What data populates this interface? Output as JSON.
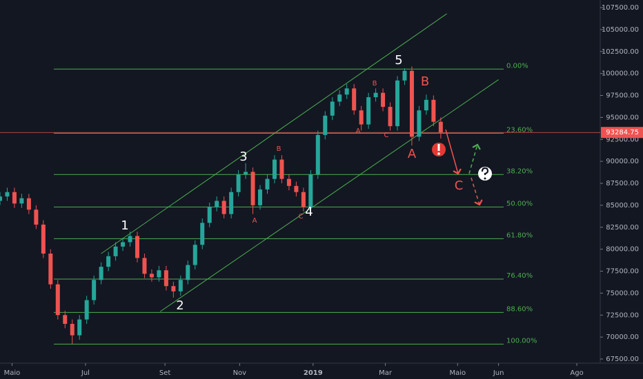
{
  "chart_data": {
    "type": "candlestick",
    "x": [
      0,
      6,
      12,
      18,
      24,
      30,
      36,
      42,
      48,
      54,
      60,
      66,
      72,
      78,
      84,
      90,
      96,
      102,
      108,
      114,
      120,
      126,
      132,
      138,
      144,
      150,
      156,
      162,
      168,
      174,
      180,
      186,
      192,
      198,
      204,
      210,
      216,
      222,
      228,
      234,
      240,
      246,
      252,
      258,
      264,
      270,
      276,
      282,
      288,
      294,
      300,
      306,
      312,
      318,
      324,
      330,
      336,
      342,
      348,
      354,
      360,
      366
    ],
    "open": [
      85500,
      86000,
      86500,
      85200,
      85800,
      84500,
      82800,
      79500,
      76000,
      72500,
      71500,
      70200,
      72000,
      74200,
      76500,
      78000,
      79200,
      80300,
      80800,
      81500,
      79000,
      77200,
      76800,
      77600,
      75800,
      75200,
      76500,
      78200,
      80500,
      83000,
      84800,
      85500,
      84000,
      86500,
      88500,
      88800,
      85000,
      86800,
      88000,
      90200,
      88000,
      87200,
      86500,
      84800,
      88500,
      93000,
      95200,
      96800,
      97600,
      98300,
      95800,
      94200,
      97300,
      97800,
      96200,
      94000,
      99200,
      100300,
      92800,
      95800,
      97000,
      94500
    ],
    "high": [
      86500,
      87000,
      87000,
      86300,
      86300,
      85000,
      83300,
      80000,
      76500,
      73000,
      72000,
      72500,
      74700,
      77000,
      78500,
      79700,
      80800,
      81300,
      82000,
      82000,
      79500,
      77700,
      78100,
      78100,
      76300,
      77000,
      78700,
      81000,
      83500,
      85300,
      86000,
      86000,
      87000,
      89000,
      89800,
      89300,
      87300,
      88500,
      90700,
      90700,
      88500,
      87700,
      87000,
      89000,
      93500,
      95700,
      97300,
      98100,
      98800,
      98800,
      96300,
      97800,
      98300,
      98300,
      96700,
      99700,
      100600,
      100800,
      96300,
      97600,
      97500,
      95000
    ],
    "low": [
      85000,
      85500,
      84700,
      84700,
      84000,
      82300,
      79000,
      75500,
      72000,
      71000,
      69200,
      69700,
      71500,
      73700,
      76000,
      77500,
      78700,
      79800,
      80300,
      78500,
      76700,
      76300,
      76300,
      75300,
      74500,
      74700,
      76000,
      77700,
      80000,
      82500,
      84300,
      83500,
      83500,
      86000,
      88000,
      84000,
      84500,
      86300,
      87500,
      87500,
      86700,
      86000,
      84300,
      84300,
      88000,
      92500,
      94700,
      96300,
      97100,
      95300,
      93500,
      93700,
      96800,
      95700,
      93500,
      93500,
      98700,
      91800,
      92300,
      95300,
      94000,
      92600
    ],
    "close": [
      86000,
      86500,
      85200,
      85800,
      84500,
      82800,
      79500,
      76000,
      72500,
      71500,
      70200,
      72000,
      74200,
      76500,
      78000,
      79200,
      80300,
      80800,
      81500,
      79000,
      77200,
      76800,
      77600,
      75800,
      75200,
      76500,
      78200,
      80500,
      83000,
      84800,
      85500,
      84000,
      86500,
      88500,
      88800,
      85000,
      86800,
      88000,
      90200,
      88000,
      87200,
      86500,
      84800,
      88500,
      93000,
      95200,
      96800,
      97600,
      98300,
      95800,
      94200,
      97300,
      97800,
      96200,
      94000,
      99200,
      100300,
      92800,
      95800,
      97000,
      94500,
      93284.75
    ],
    "up_color": "#26a69a",
    "down_color": "#ef5350",
    "last_price": 93284.75,
    "xlim": [
      0,
      499
    ],
    "xticks": [
      {
        "value": 10,
        "label": "Maio"
      },
      {
        "value": 71,
        "label": "Jul"
      },
      {
        "value": 137,
        "label": "Set"
      },
      {
        "value": 199,
        "label": "Nov"
      },
      {
        "value": 260,
        "label": "2019"
      },
      {
        "value": 320,
        "label": "Mar"
      },
      {
        "value": 380,
        "label": "Maio"
      },
      {
        "value": 414,
        "label": "Jun"
      },
      {
        "value": 479,
        "label": "Ago"
      }
    ],
    "ylim": [
      67500,
      107500
    ],
    "yticks": [
      {
        "value": 107500,
        "label": "107500.00"
      },
      {
        "value": 105000,
        "label": "105000.00"
      },
      {
        "value": 102500,
        "label": "102500.00"
      },
      {
        "value": 100000,
        "label": "100000.00"
      },
      {
        "value": 97500,
        "label": "97500.00"
      },
      {
        "value": 95000,
        "label": "95000.00"
      },
      {
        "value": 92500,
        "label": "92500.00"
      },
      {
        "value": 90000,
        "label": "90000.00"
      },
      {
        "value": 87500,
        "label": "87500.00"
      },
      {
        "value": 85000,
        "label": "85000.00"
      },
      {
        "value": 82500,
        "label": "82500.00"
      },
      {
        "value": 80000,
        "label": "80000.00"
      },
      {
        "value": 77500,
        "label": "77500.00"
      },
      {
        "value": 75000,
        "label": "75000.00"
      },
      {
        "value": 72500,
        "label": "72500.00"
      },
      {
        "value": 70000,
        "label": "70000.00"
      },
      {
        "value": 67500,
        "label": "67500.00"
      }
    ],
    "fib_levels": [
      {
        "label": "0.00%",
        "value": 100500
      },
      {
        "label": "23.60%",
        "value": 93200
      },
      {
        "label": "38.20%",
        "value": 88500
      },
      {
        "label": "50.00%",
        "value": 84800
      },
      {
        "label": "61.80%",
        "value": 81200
      },
      {
        "label": "76.40%",
        "value": 76600
      },
      {
        "label": "88.60%",
        "value": 72800
      },
      {
        "label": "100.00%",
        "value": 69200
      }
    ],
    "fib_color": "#4caf50",
    "channel": [
      {
        "x": [
          84,
          371
        ],
        "y": [
          79500,
          106800
        ]
      },
      {
        "x": [
          133,
          414
        ],
        "y": [
          72900,
          99300
        ]
      }
    ],
    "wave_labels": [
      "1",
      "2",
      "3",
      "4",
      "5",
      "A",
      "B",
      "C",
      "A",
      "B",
      "C",
      "A",
      "B",
      "C"
    ]
  }
}
